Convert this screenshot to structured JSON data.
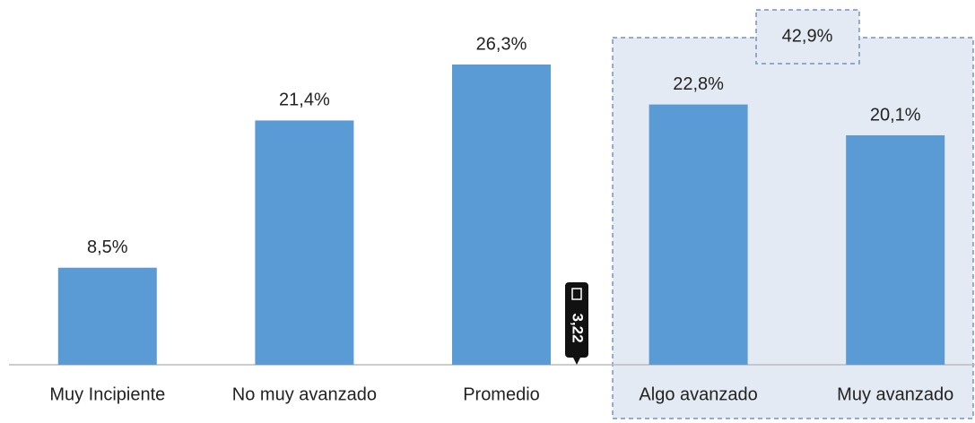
{
  "chart_data": {
    "type": "bar",
    "categories": [
      "Muy Incipiente",
      "No muy avanzado",
      "Promedio",
      "Algo avanzado",
      "Muy avanzado"
    ],
    "values": [
      8.5,
      21.4,
      26.3,
      22.8,
      20.1
    ],
    "value_labels": [
      "8,5%",
      "21,4%",
      "26,3%",
      "22,8%",
      "20,1%"
    ],
    "color": "#5b9bd5",
    "group_label": "42,9%",
    "marker_label": "3,22"
  }
}
